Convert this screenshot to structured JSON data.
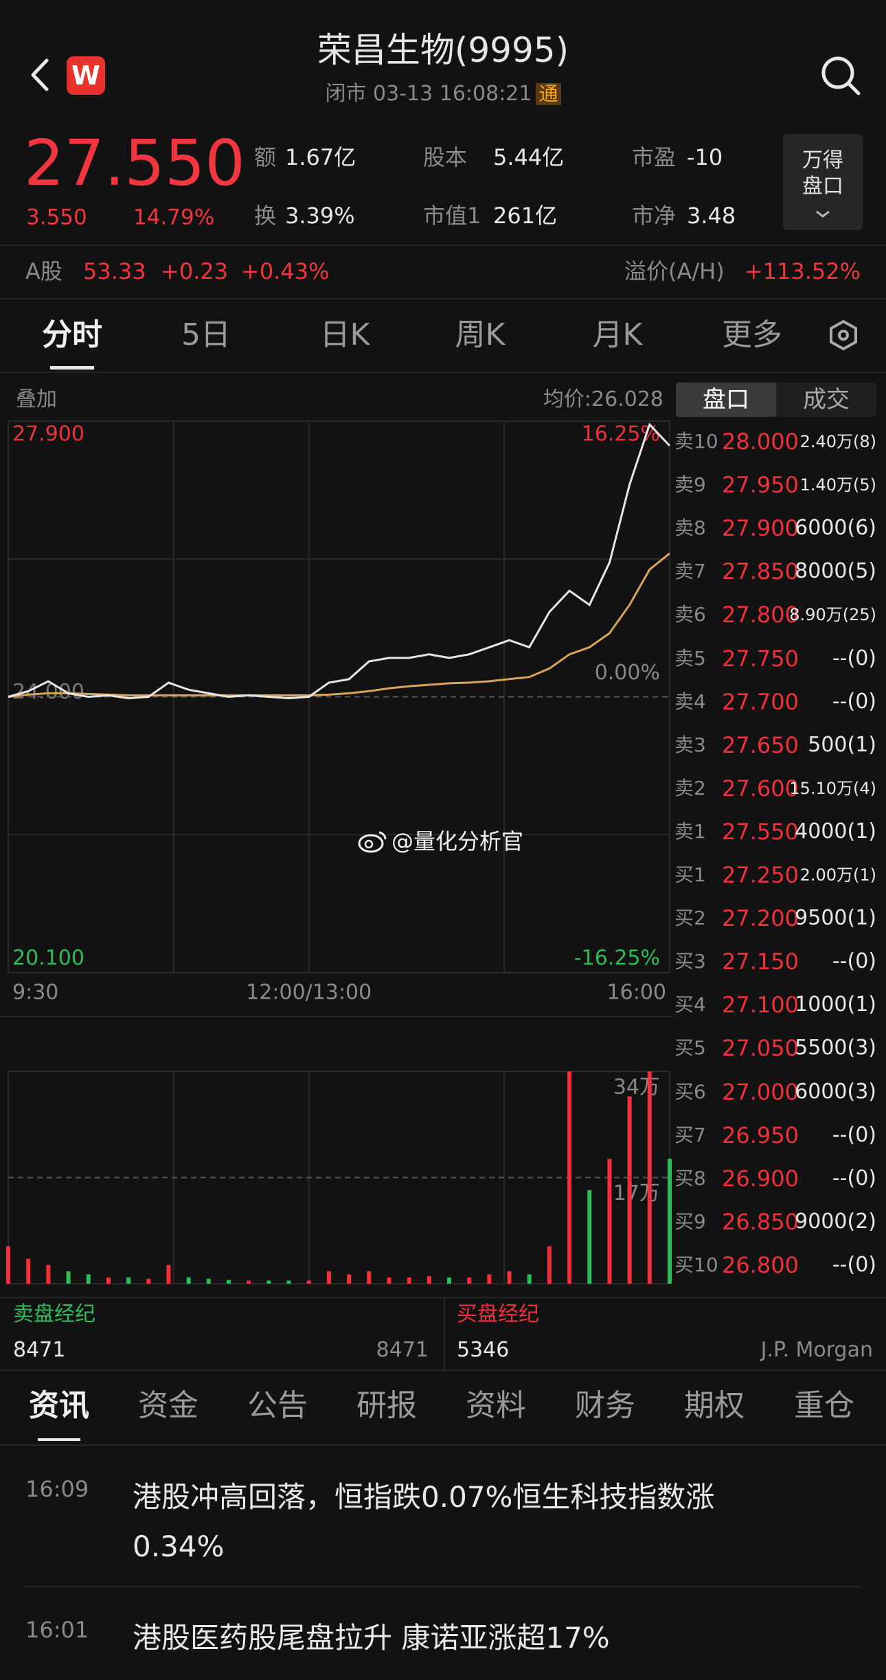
{
  "header": {
    "title": "荣昌生物(9995)",
    "status": "闭市 03-13 16:08:21",
    "badge": "通",
    "logo": "W"
  },
  "quote": {
    "price": "27.550",
    "change": "3.550",
    "change_pct": "14.79%",
    "stats": [
      {
        "label": "额",
        "value": "1.67亿"
      },
      {
        "label": "换",
        "value": "3.39%"
      },
      {
        "label": "股本",
        "value": "5.44亿"
      },
      {
        "label": "市值1",
        "value": "261亿"
      },
      {
        "label": "市盈",
        "value": "-10"
      },
      {
        "label": "市净",
        "value": "3.48"
      }
    ],
    "wind_button": [
      "万得",
      "盘口"
    ]
  },
  "a_share": {
    "label": "A股",
    "price": "53.33",
    "change": "+0.23",
    "change_pct": "+0.43%",
    "premium_label": "溢价(A/H)",
    "premium": "+113.52%"
  },
  "tabs": [
    "分时",
    "5日",
    "日K",
    "周K",
    "月K",
    "更多"
  ],
  "intraday": {
    "overlay": "叠加",
    "avg_label": "均价:26.028",
    "watermark": "@量化分析官",
    "x": [
      0,
      10,
      20,
      30,
      40,
      50,
      60,
      70,
      80,
      90,
      100,
      110,
      120,
      130,
      140,
      150,
      160,
      170,
      180,
      190,
      200,
      210,
      220,
      230,
      240,
      250,
      260,
      270,
      280,
      290,
      300,
      310,
      320,
      330
    ],
    "xlim": [
      0,
      330
    ],
    "xticks": [
      {
        "value": 0,
        "label": "9:30"
      },
      {
        "value": 150,
        "label": "12:00/13:00"
      },
      {
        "value": 330,
        "label": "16:00"
      }
    ],
    "ylim": [
      20.1,
      27.9
    ],
    "yticks": [
      {
        "value": 27.9,
        "label": "27.900"
      },
      {
        "value": 24.0,
        "label": "24.000"
      },
      {
        "value": 20.1,
        "label": "20.100"
      }
    ],
    "y2lim": [
      -16.25,
      16.25
    ],
    "y2ticks": [
      {
        "value": 16.25,
        "label": "16.25%"
      },
      {
        "value": 0,
        "label": "0.00%"
      },
      {
        "value": -16.25,
        "label": "-16.25%"
      }
    ],
    "price": [
      24.0,
      24.08,
      24.22,
      24.05,
      24.0,
      24.02,
      23.98,
      24.0,
      24.2,
      24.1,
      24.05,
      24.0,
      24.02,
      24.0,
      23.98,
      24.0,
      24.2,
      24.25,
      24.5,
      24.55,
      24.55,
      24.6,
      24.55,
      24.6,
      24.7,
      24.8,
      24.7,
      25.2,
      25.5,
      25.3,
      25.9,
      27.0,
      27.85,
      27.55
    ],
    "avg": [
      24.0,
      24.03,
      24.05,
      24.05,
      24.04,
      24.03,
      24.02,
      24.02,
      24.02,
      24.02,
      24.02,
      24.02,
      24.02,
      24.02,
      24.02,
      24.02,
      24.03,
      24.05,
      24.08,
      24.12,
      24.15,
      24.17,
      24.19,
      24.2,
      24.22,
      24.25,
      24.28,
      24.4,
      24.6,
      24.7,
      24.9,
      25.3,
      25.8,
      26.028
    ],
    "price_color": "#e6e6e6",
    "avg_color": "#d9a55b",
    "volume": [
      60000,
      40000,
      30000,
      20000,
      15000,
      10000,
      10000,
      8000,
      30000,
      10000,
      8000,
      6000,
      5000,
      5000,
      5000,
      5000,
      20000,
      15000,
      20000,
      10000,
      10000,
      12000,
      10000,
      10000,
      15000,
      20000,
      15000,
      60000,
      340000,
      150000,
      200000,
      300000,
      340000,
      200000
    ],
    "volume_lim": [
      0,
      340000
    ],
    "volume_ticks": [
      {
        "value": 340000,
        "label": "34万"
      },
      {
        "value": 170000,
        "label": "17万"
      }
    ],
    "up_color": "#f2303b",
    "down_color": "#2ebd59"
  },
  "order_book": {
    "tabs": [
      "盘口",
      "成交"
    ],
    "rows": [
      {
        "label": "卖10",
        "price": "28.000",
        "volume": "2.40万(8)"
      },
      {
        "label": "卖9",
        "price": "27.950",
        "volume": "1.40万(5)"
      },
      {
        "label": "卖8",
        "price": "27.900",
        "volume": "6000(6)"
      },
      {
        "label": "卖7",
        "price": "27.850",
        "volume": "8000(5)"
      },
      {
        "label": "卖6",
        "price": "27.800",
        "volume": "8.90万(25)"
      },
      {
        "label": "卖5",
        "price": "27.750",
        "volume": "--(0)"
      },
      {
        "label": "卖4",
        "price": "27.700",
        "volume": "--(0)"
      },
      {
        "label": "卖3",
        "price": "27.650",
        "volume": "500(1)"
      },
      {
        "label": "卖2",
        "price": "27.600",
        "volume": "15.10万(4)"
      },
      {
        "label": "卖1",
        "price": "27.550",
        "volume": "4000(1)"
      },
      {
        "label": "买1",
        "price": "27.250",
        "volume": "2.00万(1)"
      },
      {
        "label": "买2",
        "price": "27.200",
        "volume": "9500(1)"
      },
      {
        "label": "买3",
        "price": "27.150",
        "volume": "--(0)"
      },
      {
        "label": "买4",
        "price": "27.100",
        "volume": "1000(1)"
      },
      {
        "label": "买5",
        "price": "27.050",
        "volume": "5500(3)"
      },
      {
        "label": "买6",
        "price": "27.000",
        "volume": "6000(3)"
      },
      {
        "label": "买7",
        "price": "26.950",
        "volume": "--(0)"
      },
      {
        "label": "买8",
        "price": "26.900",
        "volume": "--(0)"
      },
      {
        "label": "买9",
        "price": "26.850",
        "volume": "9000(2)"
      },
      {
        "label": "买10",
        "price": "26.800",
        "volume": "--(0)"
      }
    ]
  },
  "brokers": [
    {
      "title": "卖盘经纪",
      "code": "8471",
      "name": "8471"
    },
    {
      "title": "买盘经纪",
      "code": "5346",
      "name": "J.P. Morgan"
    }
  ],
  "news_tabs": [
    "资讯",
    "资金",
    "公告",
    "研报",
    "资料",
    "财务",
    "期权",
    "重仓"
  ],
  "news": [
    {
      "time": "16:09",
      "text": "港股冲高回落，恒指跌0.07%恒生科技指数涨0.34%"
    },
    {
      "time": "16:01",
      "text": "港股医药股尾盘拉升 康诺亚涨超17%"
    }
  ]
}
